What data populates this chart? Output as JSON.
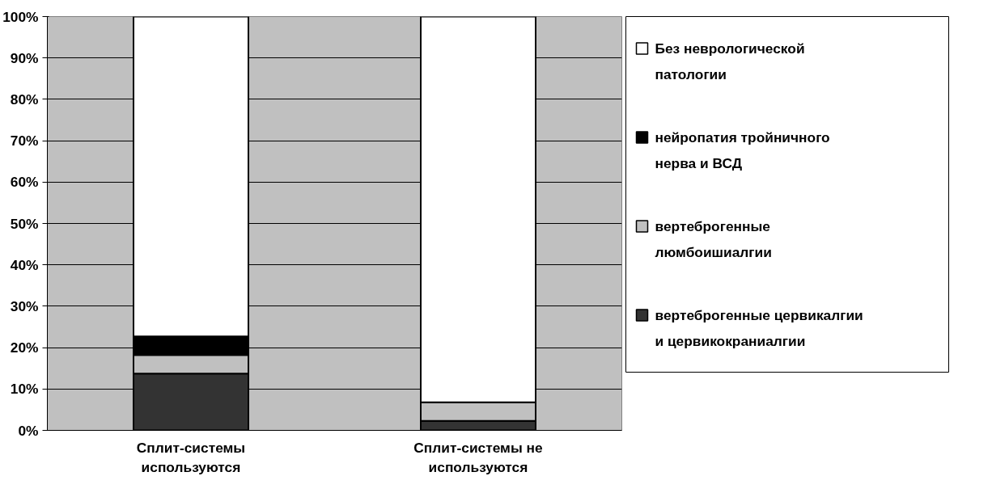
{
  "chart_data": {
    "type": "bar",
    "stacked": true,
    "categories": [
      "Сплит-системы используются",
      "Сплит-системы не используются"
    ],
    "series": [
      {
        "name": "вертеброгенные цервикалгии и цервикокраниалгии",
        "color": "#333333",
        "values": [
          13.7,
          2.3
        ]
      },
      {
        "name": "вертеброгенные люмбоишиалгии",
        "color": "#c0c0c0",
        "values": [
          4.5,
          4.5
        ]
      },
      {
        "name": "нейропатия тройничного нерва и ВСД",
        "color": "#000000",
        "values": [
          4.5,
          0
        ]
      },
      {
        "name": "Без неврологической патологии",
        "color": "#ffffff",
        "values": [
          77.3,
          93.2
        ]
      }
    ],
    "ylim": [
      0,
      100
    ],
    "yticks": [
      {
        "value": 0,
        "label": "0%"
      },
      {
        "value": 10,
        "label": "10%"
      },
      {
        "value": 20,
        "label": "20%"
      },
      {
        "value": 30,
        "label": "30%"
      },
      {
        "value": 40,
        "label": "40%"
      },
      {
        "value": 50,
        "label": "50%"
      },
      {
        "value": 60,
        "label": "60%"
      },
      {
        "value": 70,
        "label": "70%"
      },
      {
        "value": 80,
        "label": "80%"
      },
      {
        "value": 90,
        "label": "90%"
      },
      {
        "value": 100,
        "label": "100%"
      }
    ],
    "grid": "y",
    "legend": "right"
  }
}
